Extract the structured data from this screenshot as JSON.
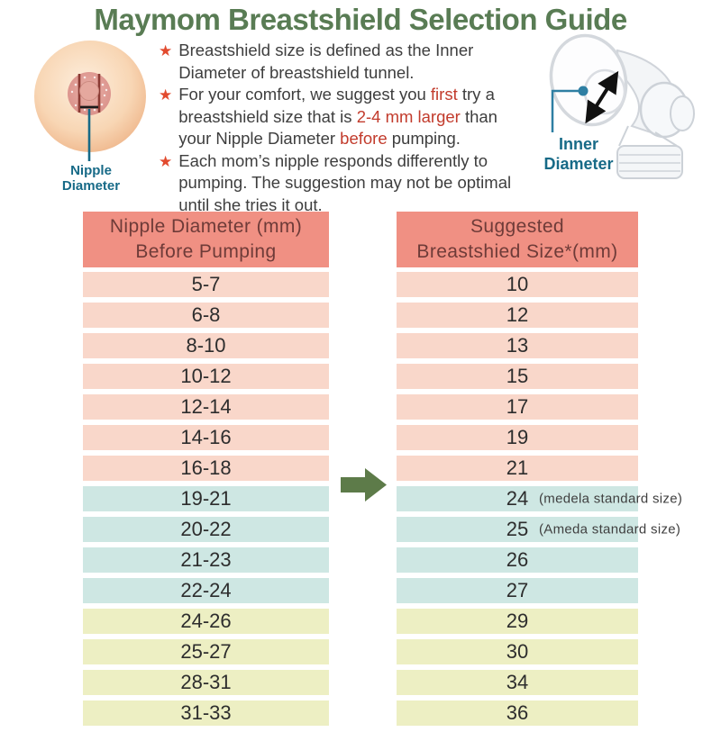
{
  "title": "Maymom Breastshield Selection Guide",
  "colors": {
    "title_green": "#597c54",
    "arrow_green": "#5d7b49",
    "header_bg": "#f09083",
    "header_text": "#6e3b38",
    "row_pink": "#f9d7ca",
    "row_blue": "#cee7e3",
    "row_yellow": "#edefc3",
    "text_dark": "#3e3e3e",
    "highlight_red": "#c23b2c",
    "star_red": "#e24a2e",
    "label_teal": "#176a87"
  },
  "icons": {
    "bullet_star": "★",
    "flow_arrow": "right-arrow"
  },
  "left_illustration": {
    "label_lines": [
      "Nipple",
      "Diameter"
    ]
  },
  "right_illustration": {
    "label_lines": [
      "Inner",
      "Diameter"
    ]
  },
  "bullets": [
    {
      "segments": [
        {
          "text": "Breastshield size is defined as the Inner Diameter of breastshield tunnel."
        }
      ]
    },
    {
      "segments": [
        {
          "text": "For your comfort, we suggest you "
        },
        {
          "text": "first",
          "hl": true
        },
        {
          "text": " try a breastshield size that is "
        },
        {
          "text": "2-4 mm larger",
          "hl": true
        },
        {
          "text": " than your Nipple Diameter "
        },
        {
          "text": "before",
          "hl": true
        },
        {
          "text": " pumping."
        }
      ]
    },
    {
      "segments": [
        {
          "text": "Each mom’s nipple responds differently to pumping. The suggestion may not be optimal until she tries it out."
        }
      ]
    }
  ],
  "table": {
    "header_left_lines": [
      "Nipple Diameter (mm)",
      "Before Pumping"
    ],
    "header_right_lines": [
      "Suggested",
      "Breastshied Size*(mm)"
    ],
    "rows": [
      {
        "range": "5-7",
        "size": "10",
        "note": "",
        "color": "pink"
      },
      {
        "range": "6-8",
        "size": "12",
        "note": "",
        "color": "pink"
      },
      {
        "range": "8-10",
        "size": "13",
        "note": "",
        "color": "pink"
      },
      {
        "range": "10-12",
        "size": "15",
        "note": "",
        "color": "pink"
      },
      {
        "range": "12-14",
        "size": "17",
        "note": "",
        "color": "pink"
      },
      {
        "range": "14-16",
        "size": "19",
        "note": "",
        "color": "pink"
      },
      {
        "range": "16-18",
        "size": "21",
        "note": "",
        "color": "pink"
      },
      {
        "range": "19-21",
        "size": "24",
        "note": "(medela standard size)",
        "color": "blue"
      },
      {
        "range": "20-22",
        "size": "25",
        "note": "(Ameda standard size)",
        "color": "blue"
      },
      {
        "range": "21-23",
        "size": "26",
        "note": "",
        "color": "blue"
      },
      {
        "range": "22-24",
        "size": "27",
        "note": "",
        "color": "blue"
      },
      {
        "range": "24-26",
        "size": "29",
        "note": "",
        "color": "yellow"
      },
      {
        "range": "25-27",
        "size": "30",
        "note": "",
        "color": "yellow"
      },
      {
        "range": "28-31",
        "size": "34",
        "note": "",
        "color": "yellow"
      },
      {
        "range": "31-33",
        "size": "36",
        "note": "",
        "color": "yellow"
      }
    ]
  }
}
